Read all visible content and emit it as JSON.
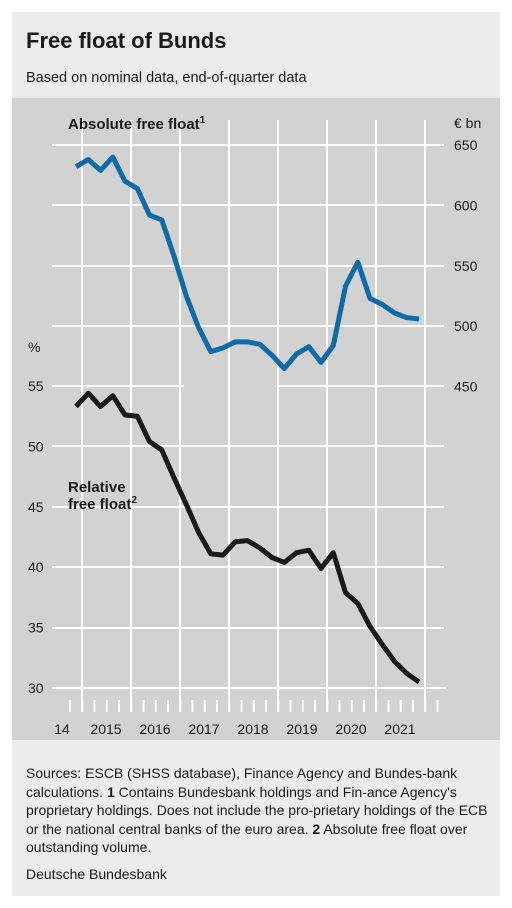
{
  "header": {
    "title": "Free float of Bunds",
    "subtitle": "Based on nominal data, end-of-quarter data"
  },
  "chart_data": {
    "type": "line",
    "x_start": "2014-Q3",
    "x_tick_labels": [
      "14",
      "2015",
      "2016",
      "2017",
      "2018",
      "2019",
      "2020",
      "2021"
    ],
    "colors": {
      "absolute": "#0e6aa8",
      "relative": "#1a1a1a",
      "plot_bg": "#d2d2d2",
      "grid": "#ffffff"
    },
    "series": [
      {
        "name": "Absolute free float",
        "name_note": "1",
        "axis": "right",
        "unit": "€ bn",
        "ticks": [
          "450",
          "500",
          "550",
          "600",
          "650"
        ],
        "values": [
          632,
          638,
          629,
          640,
          620,
          614,
          592,
          588,
          558,
          525,
          499,
          479,
          482,
          487,
          487,
          485,
          476,
          465,
          477,
          483,
          470,
          484,
          533,
          553,
          523,
          518,
          511,
          507,
          506
        ]
      },
      {
        "name": "Relative",
        "name_line2": "free float",
        "name_note": "2",
        "axis": "left",
        "unit": "%",
        "ticks": [
          "30",
          "35",
          "40",
          "45",
          "50",
          "55"
        ],
        "values": [
          53.3,
          54.4,
          53.3,
          54.2,
          52.6,
          52.5,
          50.4,
          49.7,
          47.4,
          45.2,
          42.9,
          41.1,
          41.0,
          42.1,
          42.2,
          41.6,
          40.8,
          40.4,
          41.2,
          41.4,
          39.9,
          41.2,
          37.9,
          37.0,
          35.1,
          33.6,
          32.2,
          31.2,
          30.5
        ]
      }
    ]
  },
  "notes": {
    "part1": "Sources: ESCB (SHSS database), Finance Agency and Bundes-bank calculations. ",
    "n1": "1",
    "part2": " Contains Bundesbank holdings and Fin-ance Agency's proprietary holdings. Does not include the pro-prietary holdings of the ECB or the national central banks of the euro area. ",
    "n2": "2",
    "part3": " Absolute free float over outstanding volume."
  },
  "footer": "Deutsche Bundesbank"
}
